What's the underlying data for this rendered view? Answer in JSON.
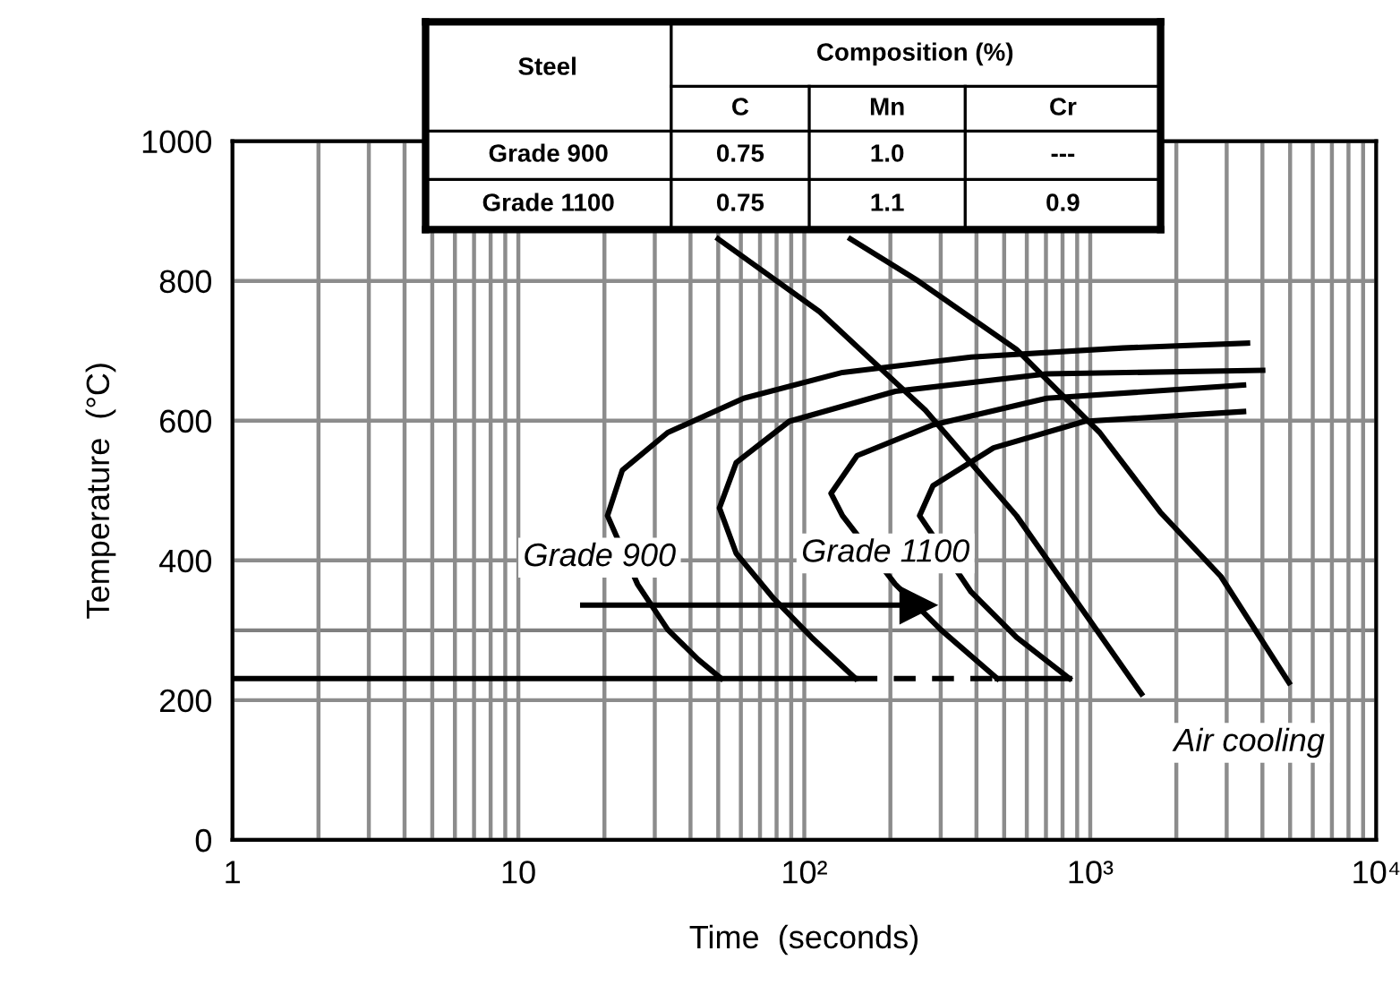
{
  "chart_data": [
    {
      "type": "line",
      "xlabel": "Time  (seconds)",
      "ylabel": "Temperature  (°C)",
      "log": "x",
      "xlim": [
        1,
        10000
      ],
      "xticks": [
        1,
        10,
        {
          "value": 100,
          "label": "10²"
        },
        {
          "value": 1000,
          "label": "10³"
        },
        {
          "value": 10000,
          "label": "10⁴"
        }
      ],
      "ylim": [
        0,
        1000
      ],
      "yticks": [
        0,
        200,
        400,
        600,
        800,
        1000
      ],
      "grid": true,
      "line_style": "solid",
      "marker": "none",
      "ref_lines": [
        {
          "axis": "y",
          "value": 300,
          "color": "#808080"
        }
      ],
      "series": [
        {
          "color": "#000000",
          "x": [
            3548,
            1297,
            383,
            136,
            61.4,
            33.3,
            23.1,
            20.5,
            26.1,
            33.3,
            42.6,
            51.2
          ],
          "values": [
            711,
            704,
            691,
            669,
            632,
            583,
            529,
            464,
            366,
            301,
            258,
            231
          ]
        },
        {
          "color": "#000000",
          "x": [
            4009,
            704,
            208,
            88.6,
            57.8,
            50.5,
            57.8,
            78.3,
            106,
            151
          ],
          "values": [
            672,
            667,
            642,
            599,
            540,
            475,
            410,
            345,
            290,
            231
          ]
        },
        {
          "color": "#000000",
          "x": [
            3436,
            704,
            282,
            153,
            124,
            136,
            208,
            300,
            473
          ],
          "values": [
            651,
            632,
            594,
            550,
            496,
            464,
            366,
            301,
            231
          ]
        },
        {
          "color": "#000000",
          "x": [
            3436,
            955,
            459,
            282,
            253,
            383,
            552,
            846
          ],
          "values": [
            613,
            599,
            561,
            507,
            464,
            355,
            290,
            231
          ]
        },
        {
          "color": "#000000",
          "x": [
            1,
            151
          ],
          "values": [
            231,
            231
          ]
        },
        {
          "color": "#000000",
          "x": [
            151,
            473
          ],
          "values": [
            231,
            231
          ],
          "line_style": "dashed"
        },
        {
          "color": "#000000",
          "x": [
            473,
            846
          ],
          "values": [
            231,
            231
          ]
        },
        {
          "color": "#000000",
          "x": [
            50,
            113,
            265,
            552,
            1510
          ],
          "values": [
            860,
            756,
            615,
            464,
            209
          ]
        },
        {
          "color": "#000000",
          "x": [
            145,
            250,
            552,
            1079,
            1758,
            2864,
            4955
          ],
          "values": [
            860,
            800,
            702,
            583,
            469,
            377,
            225
          ]
        },
        {
          "color": "#000000",
          "x": [
            16.8,
            250
          ],
          "values": [
            336,
            336
          ],
          "marker": "triangle"
        }
      ],
      "annotations": [
        "Grade 900",
        "Grade 1100",
        "Air cooling"
      ]
    },
    {
      "type": "other",
      "annotations": [
        "Steel",
        "Composition (%)",
        "C",
        "Mn",
        "Cr",
        "Grade 900",
        "0.75",
        "1.0",
        "---",
        "Grade 1100",
        "0.75",
        "1.1",
        "0.9"
      ]
    }
  ]
}
